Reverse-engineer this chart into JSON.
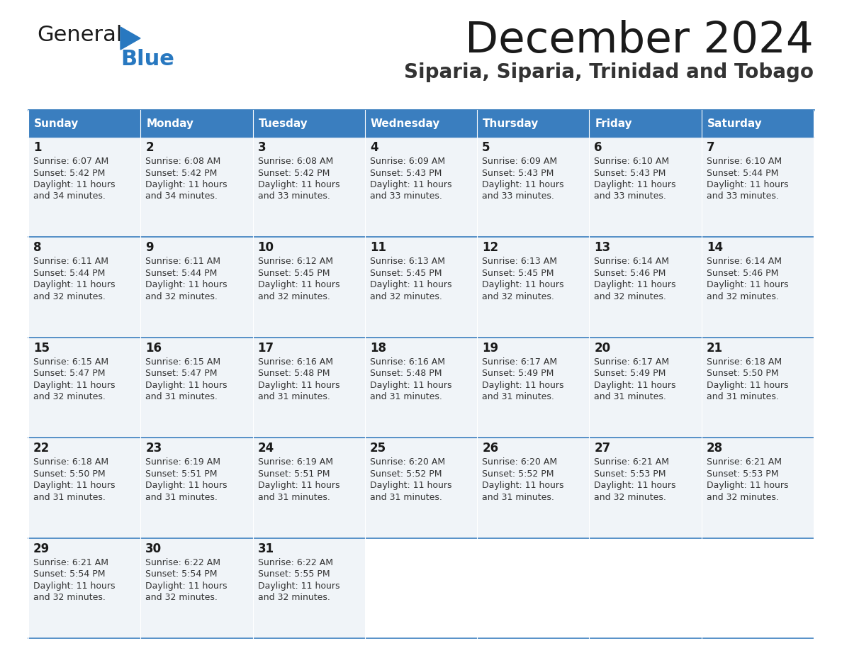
{
  "title": "December 2024",
  "subtitle": "Siparia, Siparia, Trinidad and Tobago",
  "header_color": "#3a7ebf",
  "header_text_color": "#ffffff",
  "cell_bg_color": "#f0f4f8",
  "border_color": "#3a7ebf",
  "days_of_week": [
    "Sunday",
    "Monday",
    "Tuesday",
    "Wednesday",
    "Thursday",
    "Friday",
    "Saturday"
  ],
  "calendar_data": [
    [
      {
        "day": 1,
        "sunrise": "6:07 AM",
        "sunset": "5:42 PM",
        "daylight_hours": 11,
        "daylight_minutes": 34
      },
      {
        "day": 2,
        "sunrise": "6:08 AM",
        "sunset": "5:42 PM",
        "daylight_hours": 11,
        "daylight_minutes": 34
      },
      {
        "day": 3,
        "sunrise": "6:08 AM",
        "sunset": "5:42 PM",
        "daylight_hours": 11,
        "daylight_minutes": 33
      },
      {
        "day": 4,
        "sunrise": "6:09 AM",
        "sunset": "5:43 PM",
        "daylight_hours": 11,
        "daylight_minutes": 33
      },
      {
        "day": 5,
        "sunrise": "6:09 AM",
        "sunset": "5:43 PM",
        "daylight_hours": 11,
        "daylight_minutes": 33
      },
      {
        "day": 6,
        "sunrise": "6:10 AM",
        "sunset": "5:43 PM",
        "daylight_hours": 11,
        "daylight_minutes": 33
      },
      {
        "day": 7,
        "sunrise": "6:10 AM",
        "sunset": "5:44 PM",
        "daylight_hours": 11,
        "daylight_minutes": 33
      }
    ],
    [
      {
        "day": 8,
        "sunrise": "6:11 AM",
        "sunset": "5:44 PM",
        "daylight_hours": 11,
        "daylight_minutes": 32
      },
      {
        "day": 9,
        "sunrise": "6:11 AM",
        "sunset": "5:44 PM",
        "daylight_hours": 11,
        "daylight_minutes": 32
      },
      {
        "day": 10,
        "sunrise": "6:12 AM",
        "sunset": "5:45 PM",
        "daylight_hours": 11,
        "daylight_minutes": 32
      },
      {
        "day": 11,
        "sunrise": "6:13 AM",
        "sunset": "5:45 PM",
        "daylight_hours": 11,
        "daylight_minutes": 32
      },
      {
        "day": 12,
        "sunrise": "6:13 AM",
        "sunset": "5:45 PM",
        "daylight_hours": 11,
        "daylight_minutes": 32
      },
      {
        "day": 13,
        "sunrise": "6:14 AM",
        "sunset": "5:46 PM",
        "daylight_hours": 11,
        "daylight_minutes": 32
      },
      {
        "day": 14,
        "sunrise": "6:14 AM",
        "sunset": "5:46 PM",
        "daylight_hours": 11,
        "daylight_minutes": 32
      }
    ],
    [
      {
        "day": 15,
        "sunrise": "6:15 AM",
        "sunset": "5:47 PM",
        "daylight_hours": 11,
        "daylight_minutes": 32
      },
      {
        "day": 16,
        "sunrise": "6:15 AM",
        "sunset": "5:47 PM",
        "daylight_hours": 11,
        "daylight_minutes": 31
      },
      {
        "day": 17,
        "sunrise": "6:16 AM",
        "sunset": "5:48 PM",
        "daylight_hours": 11,
        "daylight_minutes": 31
      },
      {
        "day": 18,
        "sunrise": "6:16 AM",
        "sunset": "5:48 PM",
        "daylight_hours": 11,
        "daylight_minutes": 31
      },
      {
        "day": 19,
        "sunrise": "6:17 AM",
        "sunset": "5:49 PM",
        "daylight_hours": 11,
        "daylight_minutes": 31
      },
      {
        "day": 20,
        "sunrise": "6:17 AM",
        "sunset": "5:49 PM",
        "daylight_hours": 11,
        "daylight_minutes": 31
      },
      {
        "day": 21,
        "sunrise": "6:18 AM",
        "sunset": "5:50 PM",
        "daylight_hours": 11,
        "daylight_minutes": 31
      }
    ],
    [
      {
        "day": 22,
        "sunrise": "6:18 AM",
        "sunset": "5:50 PM",
        "daylight_hours": 11,
        "daylight_minutes": 31
      },
      {
        "day": 23,
        "sunrise": "6:19 AM",
        "sunset": "5:51 PM",
        "daylight_hours": 11,
        "daylight_minutes": 31
      },
      {
        "day": 24,
        "sunrise": "6:19 AM",
        "sunset": "5:51 PM",
        "daylight_hours": 11,
        "daylight_minutes": 31
      },
      {
        "day": 25,
        "sunrise": "6:20 AM",
        "sunset": "5:52 PM",
        "daylight_hours": 11,
        "daylight_minutes": 31
      },
      {
        "day": 26,
        "sunrise": "6:20 AM",
        "sunset": "5:52 PM",
        "daylight_hours": 11,
        "daylight_minutes": 31
      },
      {
        "day": 27,
        "sunrise": "6:21 AM",
        "sunset": "5:53 PM",
        "daylight_hours": 11,
        "daylight_minutes": 32
      },
      {
        "day": 28,
        "sunrise": "6:21 AM",
        "sunset": "5:53 PM",
        "daylight_hours": 11,
        "daylight_minutes": 32
      }
    ],
    [
      {
        "day": 29,
        "sunrise": "6:21 AM",
        "sunset": "5:54 PM",
        "daylight_hours": 11,
        "daylight_minutes": 32
      },
      {
        "day": 30,
        "sunrise": "6:22 AM",
        "sunset": "5:54 PM",
        "daylight_hours": 11,
        "daylight_minutes": 32
      },
      {
        "day": 31,
        "sunrise": "6:22 AM",
        "sunset": "5:55 PM",
        "daylight_hours": 11,
        "daylight_minutes": 32
      },
      null,
      null,
      null,
      null
    ]
  ],
  "logo_general_color": "#1a1a1a",
  "logo_blue_color": "#2878c0",
  "logo_triangle_color": "#2878c0",
  "title_color": "#1a1a1a",
  "subtitle_color": "#333333",
  "day_number_color": "#1a1a1a",
  "cell_text_color": "#333333"
}
